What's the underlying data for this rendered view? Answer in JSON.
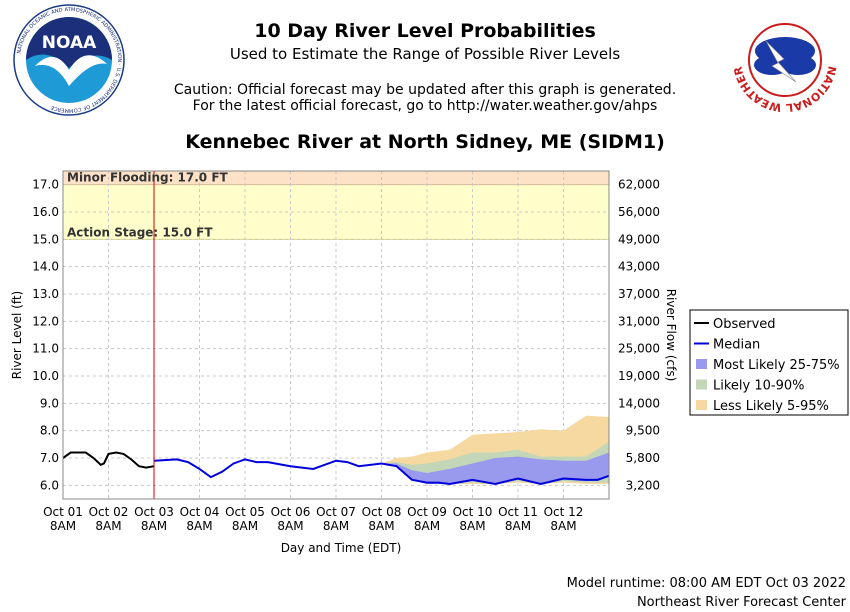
{
  "header": {
    "title": "10 Day River Level Probabilities",
    "subtitle": "Used to Estimate the Range of Possible River Levels",
    "caution_line1": "Caution: Official forecast may be updated after this graph is generated.",
    "caution_line2": "For the latest official forecast, go to http://water.weather.gov/ahps",
    "station": "Kennebec River at North Sidney, ME (SIDM1)"
  },
  "logos": {
    "noaa_text": "NOAA",
    "noaa_ring": "NATIONAL OCEANIC AND ATMOSPHERIC ADMINISTRATION · U.S. DEPARTMENT OF COMMERCE",
    "nws_ring": "NATIONAL WEATHER SERVICE"
  },
  "footer": {
    "runtime": "Model runtime: 08:00 AM EDT Oct 03 2022",
    "office": "Northeast River Forecast Center"
  },
  "colors": {
    "observed": "#000000",
    "median": "#0000dd",
    "band_25_75": "#9999ee",
    "band_10_90": "#c4d6b8",
    "band_5_95": "#f5d9a0",
    "minor_flood_band": "#fde2c8",
    "action_band": "#ffffcc",
    "forecast_start_line": "#cc0000"
  },
  "chart_data": {
    "type": "line",
    "ylabel": "River Level (ft)",
    "y2label": "River Flow (cfs)",
    "xlabel": "Day and Time (EDT)",
    "ylim": [
      5.5,
      17.5
    ],
    "grid": true,
    "yticks": [
      "6.0",
      "7.0",
      "8.0",
      "9.0",
      "10.0",
      "11.0",
      "12.0",
      "13.0",
      "14.0",
      "15.0",
      "16.0",
      "17.0"
    ],
    "y2ticks": [
      "3,200",
      "5,800",
      "9,500",
      "14,000",
      "19,000",
      "25,000",
      "31,000",
      "37,000",
      "43,000",
      "49,000",
      "56,000",
      "62,000"
    ],
    "xticks": [
      {
        "day": "Oct 01",
        "time": "8AM"
      },
      {
        "day": "Oct 02",
        "time": "8AM"
      },
      {
        "day": "Oct 03",
        "time": "8AM"
      },
      {
        "day": "Oct 04",
        "time": "8AM"
      },
      {
        "day": "Oct 05",
        "time": "8AM"
      },
      {
        "day": "Oct 06",
        "time": "8AM"
      },
      {
        "day": "Oct 07",
        "time": "8AM"
      },
      {
        "day": "Oct 08",
        "time": "8AM"
      },
      {
        "day": "Oct 09",
        "time": "8AM"
      },
      {
        "day": "Oct 10",
        "time": "8AM"
      },
      {
        "day": "Oct 11",
        "time": "8AM"
      },
      {
        "day": "Oct 12",
        "time": "8AM"
      }
    ],
    "xlim_days": [
      0,
      12
    ],
    "forecast_start_day": 2,
    "thresholds": {
      "minor_flooding": {
        "label": "Minor Flooding: 17.0 FT",
        "value": 17.0
      },
      "action_stage": {
        "label": "Action Stage: 15.0 FT",
        "value": 15.0
      }
    },
    "legend": {
      "placement": "right",
      "items": [
        "Observed",
        "Median",
        "Most Likely 25-75%",
        "Likely 10-90%",
        "Less Likely 5-95%"
      ]
    },
    "observed": {
      "x": [
        0,
        0.17,
        0.5,
        0.67,
        0.83,
        0.9,
        1.0,
        1.17,
        1.33,
        1.5,
        1.67,
        1.83,
        2.0
      ],
      "y": [
        7.0,
        7.2,
        7.2,
        7.0,
        6.75,
        6.8,
        7.15,
        7.2,
        7.15,
        6.95,
        6.7,
        6.65,
        6.7
      ]
    },
    "median": {
      "x": [
        2.0,
        2.5,
        2.75,
        3.0,
        3.25,
        3.5,
        3.75,
        4.0,
        4.25,
        4.5,
        5.0,
        5.5,
        6.0,
        6.25,
        6.5,
        7.0,
        7.33,
        7.67,
        8.0,
        8.25,
        8.5,
        9.0,
        9.5,
        10.0,
        10.5,
        11.0,
        11.5,
        11.75,
        12.0
      ],
      "y": [
        6.9,
        6.95,
        6.85,
        6.6,
        6.3,
        6.5,
        6.8,
        6.95,
        6.85,
        6.85,
        6.7,
        6.6,
        6.9,
        6.85,
        6.7,
        6.8,
        6.7,
        6.2,
        6.1,
        6.1,
        6.05,
        6.2,
        6.05,
        6.25,
        6.05,
        6.25,
        6.2,
        6.2,
        6.35
      ]
    },
    "band_25_75": {
      "x": [
        7.0,
        7.33,
        7.67,
        8.0,
        8.5,
        9.0,
        9.5,
        10.0,
        10.5,
        11.0,
        11.5,
        12.0
      ],
      "low": [
        6.8,
        6.75,
        6.2,
        6.05,
        6.05,
        6.15,
        6.05,
        6.2,
        6.05,
        6.2,
        6.15,
        6.3
      ],
      "high": [
        6.8,
        6.8,
        6.55,
        6.45,
        6.6,
        6.8,
        7.0,
        7.05,
        6.95,
        6.9,
        6.9,
        7.2
      ]
    },
    "band_10_90": {
      "x": [
        7.0,
        7.33,
        7.67,
        8.0,
        8.5,
        9.0,
        9.5,
        10.0,
        10.5,
        11.0,
        11.5,
        12.0
      ],
      "low": [
        6.8,
        6.75,
        6.2,
        6.05,
        6.05,
        6.1,
        6.05,
        6.15,
        6.05,
        6.15,
        6.1,
        6.1
      ],
      "high": [
        6.8,
        6.85,
        6.75,
        6.8,
        6.95,
        7.2,
        7.2,
        7.3,
        7.05,
        7.05,
        7.05,
        7.6
      ]
    },
    "band_5_95": {
      "x": [
        7.0,
        7.33,
        7.67,
        8.0,
        8.5,
        9.0,
        9.5,
        10.0,
        10.5,
        11.0,
        11.5,
        12.0
      ],
      "low": [
        6.8,
        6.7,
        6.2,
        6.05,
        6.05,
        6.05,
        6.05,
        6.1,
        6.05,
        6.1,
        6.05,
        6.05
      ],
      "high": [
        6.8,
        7.0,
        7.05,
        7.2,
        7.3,
        7.85,
        7.9,
        7.95,
        8.05,
        8.0,
        8.55,
        8.5
      ]
    }
  }
}
